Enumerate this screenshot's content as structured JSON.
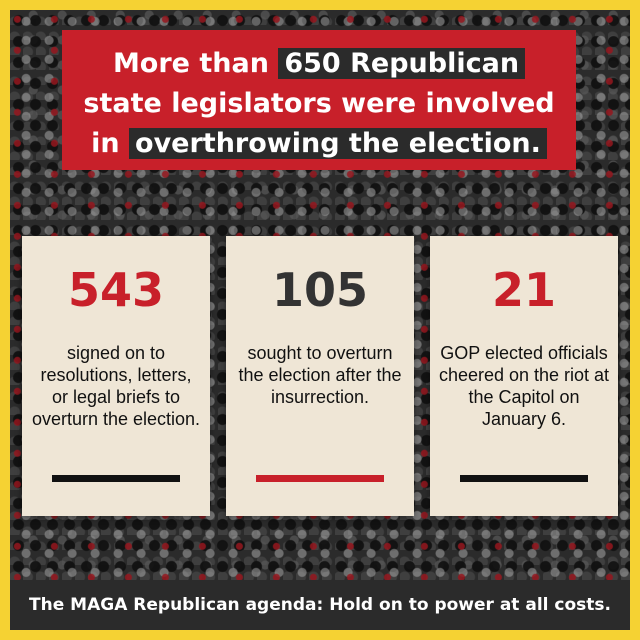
{
  "headline": {
    "line1_pre": "More than ",
    "line1_highlight": "650 Republican",
    "line2": "state legislators were involved",
    "line3_pre": "in ",
    "line3_highlight": "overthrowing the election."
  },
  "cards": [
    {
      "number": "543",
      "description": "signed on to resolutions, letters, or legal briefs to overturn the election.",
      "number_color": "#c8202a",
      "bar_color": "#111111"
    },
    {
      "number": "105",
      "description": "sought to overturn the election after the insurrection.",
      "number_color": "#333333",
      "bar_color": "#c8202a"
    },
    {
      "number": "21",
      "description": "GOP elected officials cheered on the riot at the Capitol on January 6.",
      "number_color": "#c8202a",
      "bar_color": "#111111"
    }
  ],
  "footer": {
    "text": "The MAGA Republican agenda: Hold on to power at all costs."
  },
  "colors": {
    "frame": "#f5d233",
    "red": "#c8202a",
    "dark": "#2b2b2b",
    "paper": "#efe6d6"
  }
}
